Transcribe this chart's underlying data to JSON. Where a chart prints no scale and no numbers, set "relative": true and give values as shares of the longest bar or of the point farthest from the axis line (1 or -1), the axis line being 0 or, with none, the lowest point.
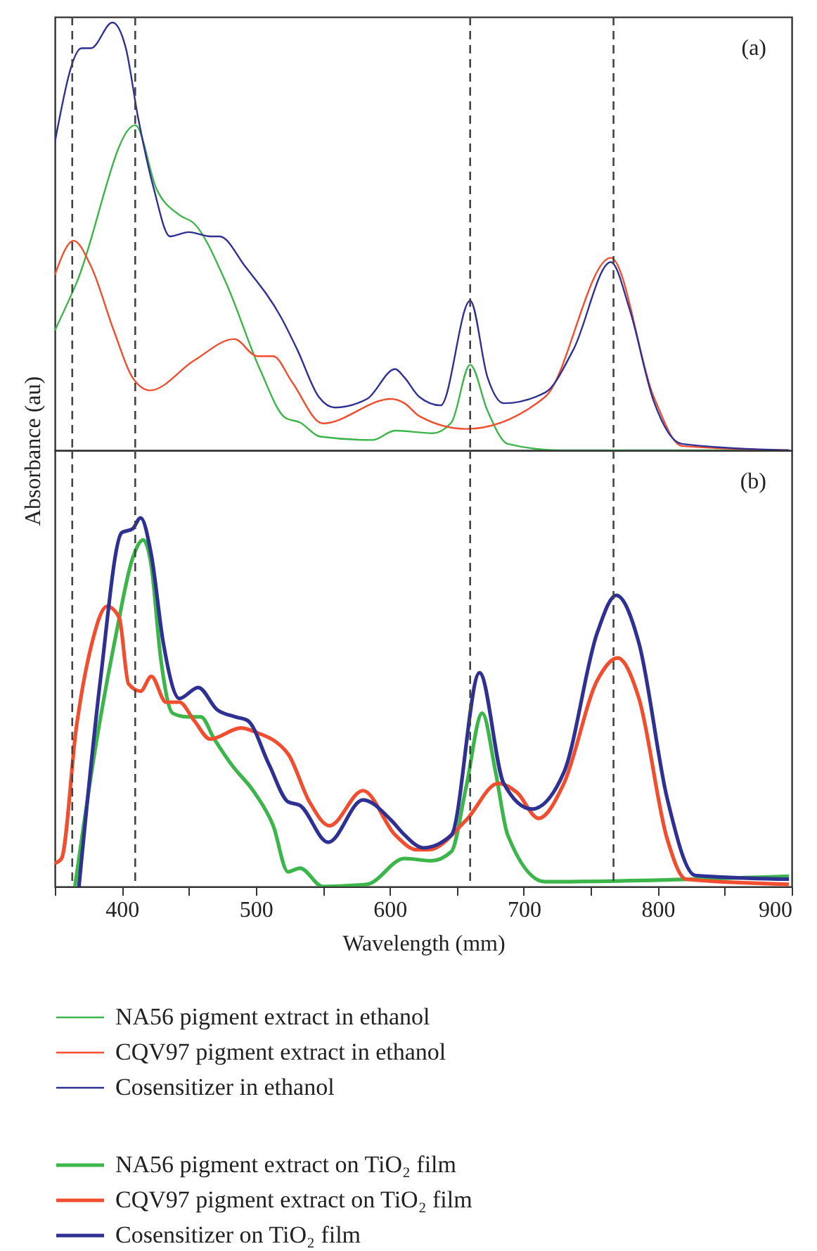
{
  "chart_data": [
    {
      "type": "line",
      "relative": true,
      "xlim": [
        350,
        900
      ],
      "tick_labels": false,
      "ylabel": "Absorbance (au)",
      "annotations": [
        "(a)"
      ],
      "legend": "bottom",
      "ref_lines": [
        {
          "axis": "x",
          "value": 363,
          "color": "#444444",
          "line_style": "dashed"
        },
        {
          "axis": "x",
          "value": 410,
          "color": "#444444",
          "line_style": "dashed"
        },
        {
          "axis": "x",
          "value": 660,
          "color": "#444444",
          "line_style": "dashed"
        },
        {
          "axis": "x",
          "value": 767,
          "color": "#444444",
          "line_style": "dashed"
        }
      ],
      "series": [
        {
          "name": "NA56 pigment extract in ethanol",
          "color": "#3cb54a",
          "x": [
            350,
            366,
            410,
            426,
            443,
            454,
            478,
            503,
            522,
            533,
            548,
            587,
            604,
            632,
            646,
            660,
            673,
            688,
            727,
            898
          ],
          "values": [
            0.28,
            0.39,
            0.76,
            0.61,
            0.55,
            0.53,
            0.39,
            0.19,
            0.076,
            0.065,
            0.032,
            0.024,
            0.046,
            0.04,
            0.065,
            0.2,
            0.092,
            0.015,
            0,
            0
          ]
        },
        {
          "name": "CQV97 pigment extract in ethanol",
          "color": "#f04e2f",
          "x": [
            350,
            364,
            377,
            394,
            408,
            421,
            454,
            484,
            501,
            513,
            527,
            550,
            601,
            611,
            622,
            657,
            716,
            765,
            797,
            818,
            898
          ],
          "values": [
            0.41,
            0.49,
            0.43,
            0.28,
            0.17,
            0.14,
            0.21,
            0.26,
            0.22,
            0.22,
            0.16,
            0.063,
            0.12,
            0.11,
            0.08,
            0.05,
            0.125,
            0.45,
            0.125,
            0.01,
            0
          ]
        },
        {
          "name": "Cosensitizer in ethanol",
          "color": "#2e3192",
          "x": [
            350,
            370,
            377,
            393,
            403,
            412,
            424,
            436,
            450,
            466,
            473,
            492,
            519,
            531,
            547,
            559,
            583,
            604,
            611,
            622,
            638,
            660,
            673,
            685,
            716,
            737,
            765,
            779,
            797,
            818,
            898
          ],
          "values": [
            0.72,
            0.94,
            0.94,
            1.0,
            0.94,
            0.78,
            0.61,
            0.5,
            0.51,
            0.5,
            0.5,
            0.43,
            0.31,
            0.235,
            0.125,
            0.1,
            0.12,
            0.19,
            0.17,
            0.125,
            0.105,
            0.35,
            0.17,
            0.11,
            0.135,
            0.235,
            0.44,
            0.33,
            0.115,
            0.015,
            0
          ]
        }
      ]
    },
    {
      "type": "line",
      "relative": true,
      "xlim": [
        350,
        900
      ],
      "xticks": [
        {
          "value": 350,
          "label": null
        },
        400,
        {
          "value": 450,
          "label": null
        },
        500,
        {
          "value": 550,
          "label": null
        },
        600,
        {
          "value": 650,
          "label": null
        },
        700,
        {
          "value": 750,
          "label": null
        },
        800,
        {
          "value": 850,
          "label": null
        },
        900
      ],
      "xlabel": "Wavelength (mm)",
      "annotations": [
        "(b)"
      ],
      "legend": "bottom",
      "ref_lines": [
        {
          "axis": "x",
          "value": 363,
          "color": "#444444",
          "line_style": "dashed"
        },
        {
          "axis": "x",
          "value": 410,
          "color": "#444444",
          "line_style": "dashed"
        },
        {
          "axis": "x",
          "value": 660,
          "color": "#444444",
          "line_style": "dashed"
        },
        {
          "axis": "x",
          "value": 767,
          "color": "#444444",
          "line_style": "dashed"
        }
      ],
      "series": [
        {
          "name": "NA56 pigment extract on TiO₂ film",
          "color": "#3cb54a",
          "x": [
            365,
            380,
            396,
            408,
            416,
            422,
            429,
            438,
            449,
            459,
            469,
            482,
            499,
            513,
            524,
            533,
            550,
            583,
            611,
            631,
            646,
            657,
            669,
            679,
            688,
            716,
            898
          ],
          "values": [
            0,
            0.37,
            0.69,
            0.89,
            0.94,
            0.87,
            0.62,
            0.47,
            0.46,
            0.46,
            0.4,
            0.33,
            0.255,
            0.165,
            0.04,
            0.05,
            0,
            0.006,
            0.076,
            0.07,
            0.095,
            0.27,
            0.47,
            0.31,
            0.14,
            0.013,
            0.028
          ]
        },
        {
          "name": "CQV97 pigment extract on TiO₂ film",
          "color": "#f04e2f",
          "x": [
            350,
            355,
            366,
            377,
            389,
            398,
            405,
            414,
            422,
            433,
            443,
            454,
            466,
            489,
            499,
            524,
            540,
            555,
            580,
            604,
            620,
            629,
            657,
            681,
            695,
            711,
            730,
            755,
            770,
            786,
            807,
            821,
            898
          ],
          "values": [
            0.063,
            0.076,
            0.43,
            0.65,
            0.76,
            0.73,
            0.55,
            0.53,
            0.57,
            0.5,
            0.5,
            0.45,
            0.4,
            0.43,
            0.42,
            0.36,
            0.23,
            0.165,
            0.26,
            0.14,
            0.1,
            0.1,
            0.18,
            0.28,
            0.255,
            0.185,
            0.28,
            0.56,
            0.62,
            0.51,
            0.13,
            0.02,
            0.006
          ]
        },
        {
          "name": "Cosensitizer on TiO₂ film",
          "color": "#2e3192",
          "x": [
            368,
            384,
            400,
            408,
            414,
            422,
            431,
            443,
            457,
            471,
            485,
            494,
            510,
            524,
            533,
            554,
            580,
            601,
            611,
            625,
            646,
            667,
            685,
            706,
            730,
            755,
            769,
            786,
            807,
            828,
            898
          ],
          "values": [
            0,
            0.56,
            0.96,
            0.97,
            1.0,
            0.9,
            0.66,
            0.51,
            0.54,
            0.48,
            0.46,
            0.45,
            0.33,
            0.23,
            0.22,
            0.12,
            0.235,
            0.18,
            0.14,
            0.105,
            0.14,
            0.58,
            0.28,
            0.21,
            0.31,
            0.69,
            0.79,
            0.66,
            0.24,
            0.03,
            0.02
          ]
        }
      ]
    }
  ]
}
